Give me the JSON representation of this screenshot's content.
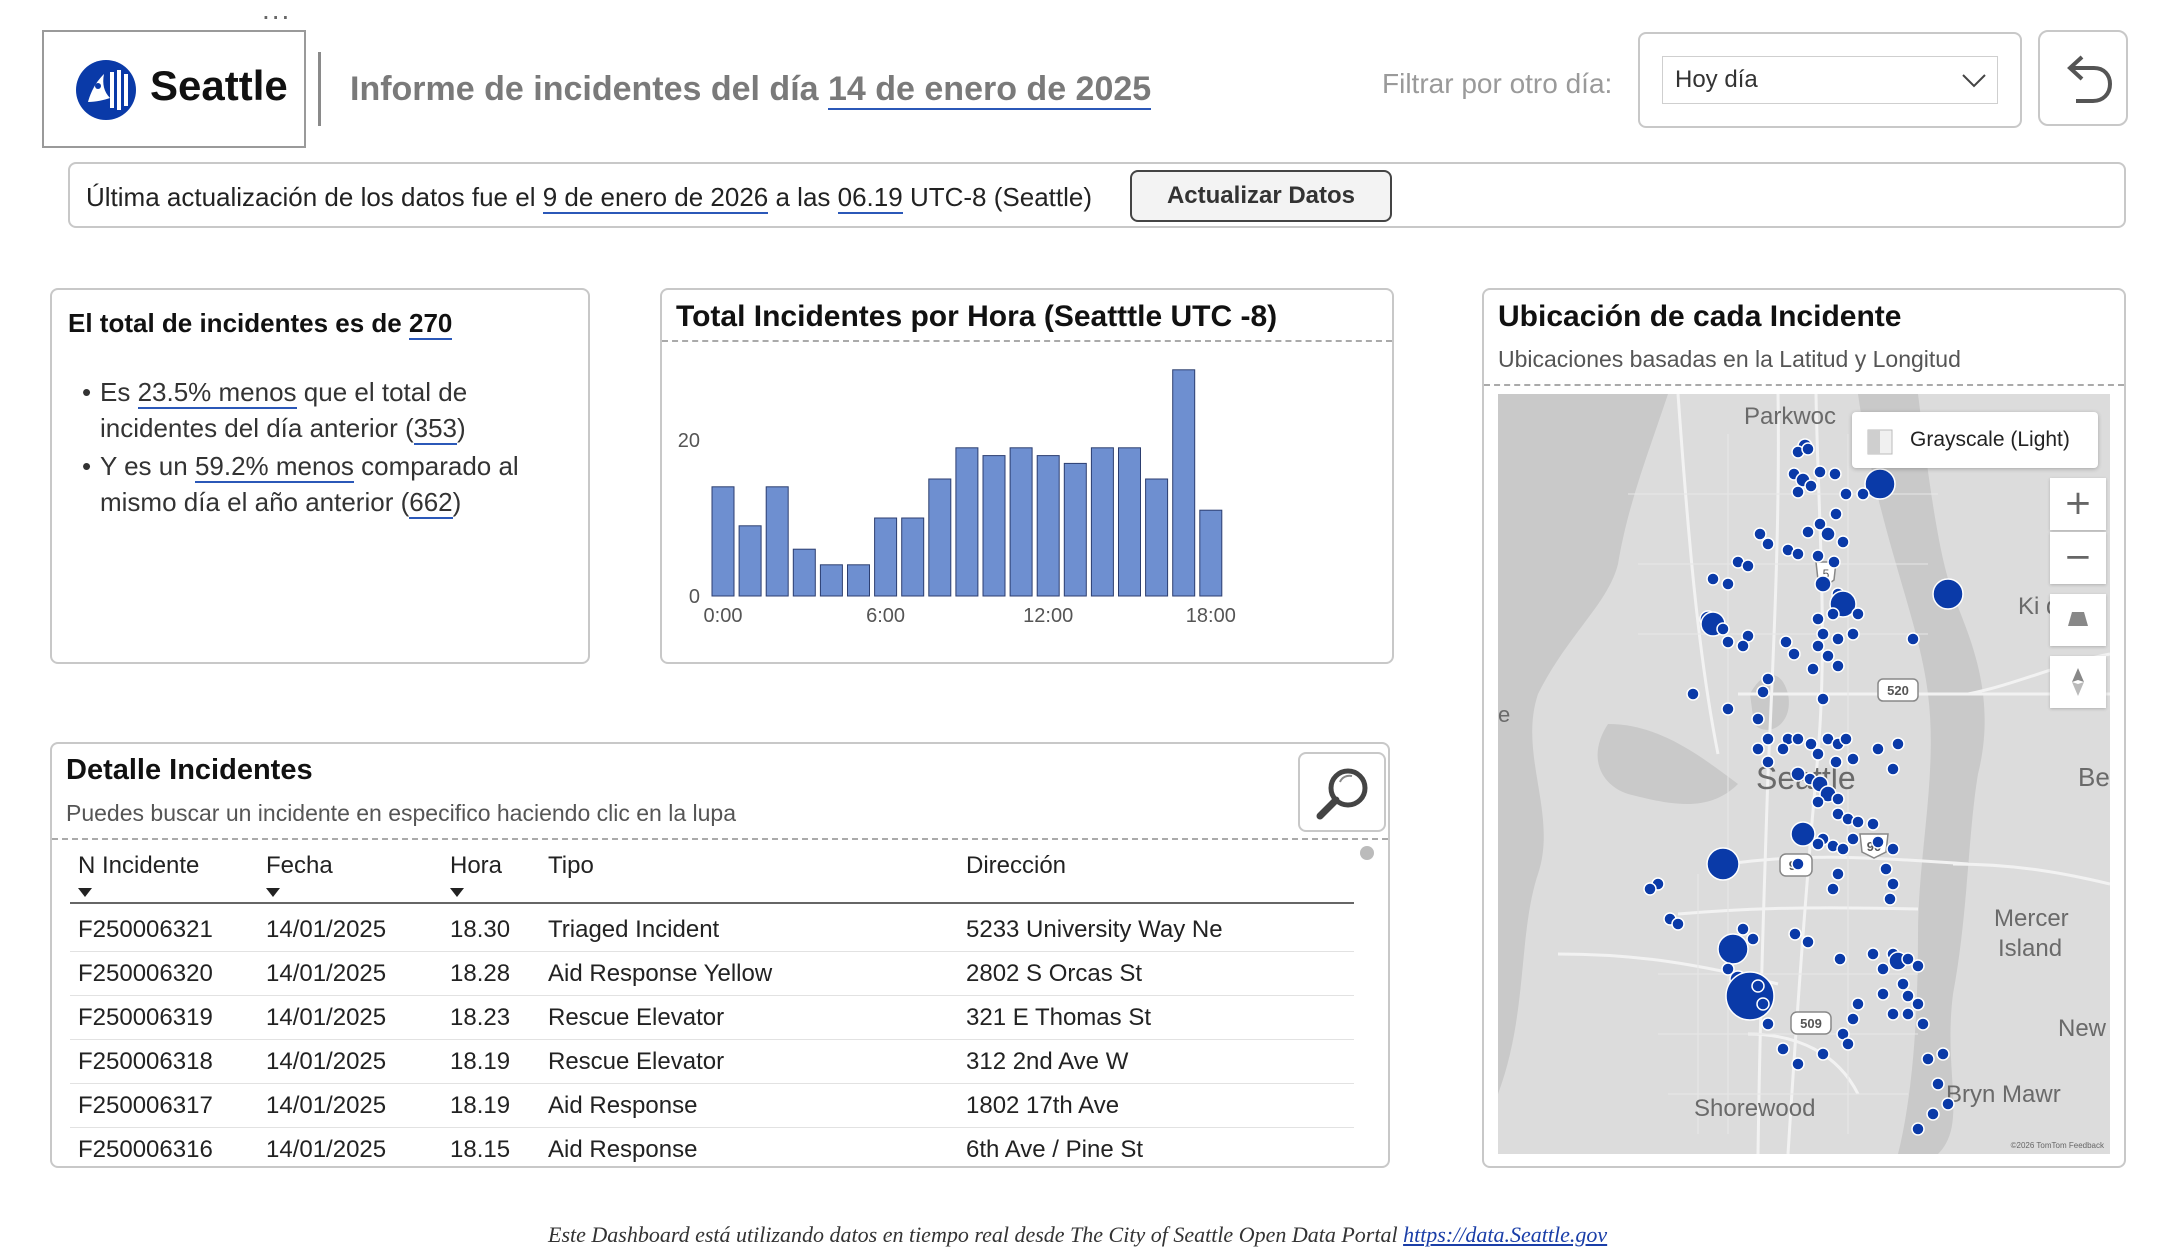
{
  "header": {
    "menu_dots": "...",
    "logo_text": "Seattle",
    "title_prefix": "Informe de incidentes del día",
    "title_date": "14 de enero de 2025",
    "filter_label": "Filtrar por otro día:",
    "filter_value": "Hoy día"
  },
  "update_bar": {
    "text_1": "Última actualización de los datos fue el",
    "date": "9 de enero de 2026",
    "text_2": "a las",
    "time": "06.19",
    "text_3": "UTC-8 (Seattle)",
    "refresh_label": "Actualizar Datos"
  },
  "total_card": {
    "title_prefix": "El total de incidentes es de",
    "total": "270",
    "b1_pre": "Es",
    "b1_pct": "23.5% menos",
    "b1_mid": "que el total de",
    "b1_line2": "incidentes del día anterior (",
    "b1_val": "353",
    "b1_end": ")",
    "b2_pre": "Y es un",
    "b2_pct": "59.2% menos",
    "b2_mid": "comparado al",
    "b2_line2": "mismo día el año anterior (",
    "b2_val": "662",
    "b2_end": ")"
  },
  "chart_card": {
    "title": "Total Incidentes por Hora (Seatttle UTC -8)"
  },
  "chart_data": {
    "type": "bar",
    "title": "Total Incidentes por Hora (Seatttle UTC -8)",
    "categories": [
      "0:00",
      "1:00",
      "2:00",
      "3:00",
      "4:00",
      "5:00",
      "6:00",
      "7:00",
      "8:00",
      "9:00",
      "10:00",
      "11:00",
      "12:00",
      "13:00",
      "14:00",
      "15:00",
      "16:00",
      "17:00",
      "18:00"
    ],
    "values": [
      14,
      9,
      14,
      6,
      4,
      4,
      10,
      10,
      15,
      19,
      18,
      19,
      18,
      17,
      19,
      19,
      15,
      29,
      11
    ],
    "xticks": [
      "0:00",
      "6:00",
      "12:00",
      "18:00"
    ],
    "yticks": [
      "0",
      "20"
    ],
    "ylim": [
      0,
      30
    ],
    "bar_color": "#6e8fd0",
    "grid": false
  },
  "map_card": {
    "title": "Ubicación de cada Incidente",
    "subtitle": "Ubicaciones basadas en la Latitud y Longitud",
    "style_label": "Grayscale (Light)",
    "zoom_in": "+",
    "zoom_out": "−",
    "labels": {
      "parkwood": "Parkwoc",
      "seattle": "Seattle",
      "kirkland": "Ki     d",
      "be": "Be",
      "mercer": "Mercer",
      "island": "Island",
      "new": "New",
      "bryn": "Bryn Mawr",
      "shorewood": "Shorewood",
      "left_e": "e"
    },
    "shields": [
      "5",
      "520",
      "90",
      "99",
      "509"
    ],
    "attribution": "©2026 TomTom  Feedback",
    "marker_color": "#0a3aa8"
  },
  "detail_card": {
    "title": "Detalle Incidentes",
    "subtitle": "Puedes buscar un incidente en especifico haciendo clic en la lupa",
    "columns": [
      "N Incidente",
      "Fecha",
      "Hora",
      "Tipo",
      "Dirección"
    ],
    "rows": [
      [
        "F250006321",
        "14/01/2025",
        "18.30",
        "Triaged Incident",
        "5233 University Way Ne"
      ],
      [
        "F250006320",
        "14/01/2025",
        "18.28",
        "Aid Response Yellow",
        "2802 S Orcas St"
      ],
      [
        "F250006319",
        "14/01/2025",
        "18.23",
        "Rescue Elevator",
        "321 E Thomas St"
      ],
      [
        "F250006318",
        "14/01/2025",
        "18.19",
        "Rescue Elevator",
        "312 2nd Ave W"
      ],
      [
        "F250006317",
        "14/01/2025",
        "18.19",
        "Aid Response",
        "1802 17th Ave"
      ],
      [
        "F250006316",
        "14/01/2025",
        "18.15",
        "Aid Response",
        "6th Ave / Pine St"
      ]
    ]
  },
  "footer": {
    "text": "Este Dashboard está utilizando datos en tiempo real desde The City of Seattle Open Data Portal",
    "link": "https://data.Seattle.gov"
  }
}
